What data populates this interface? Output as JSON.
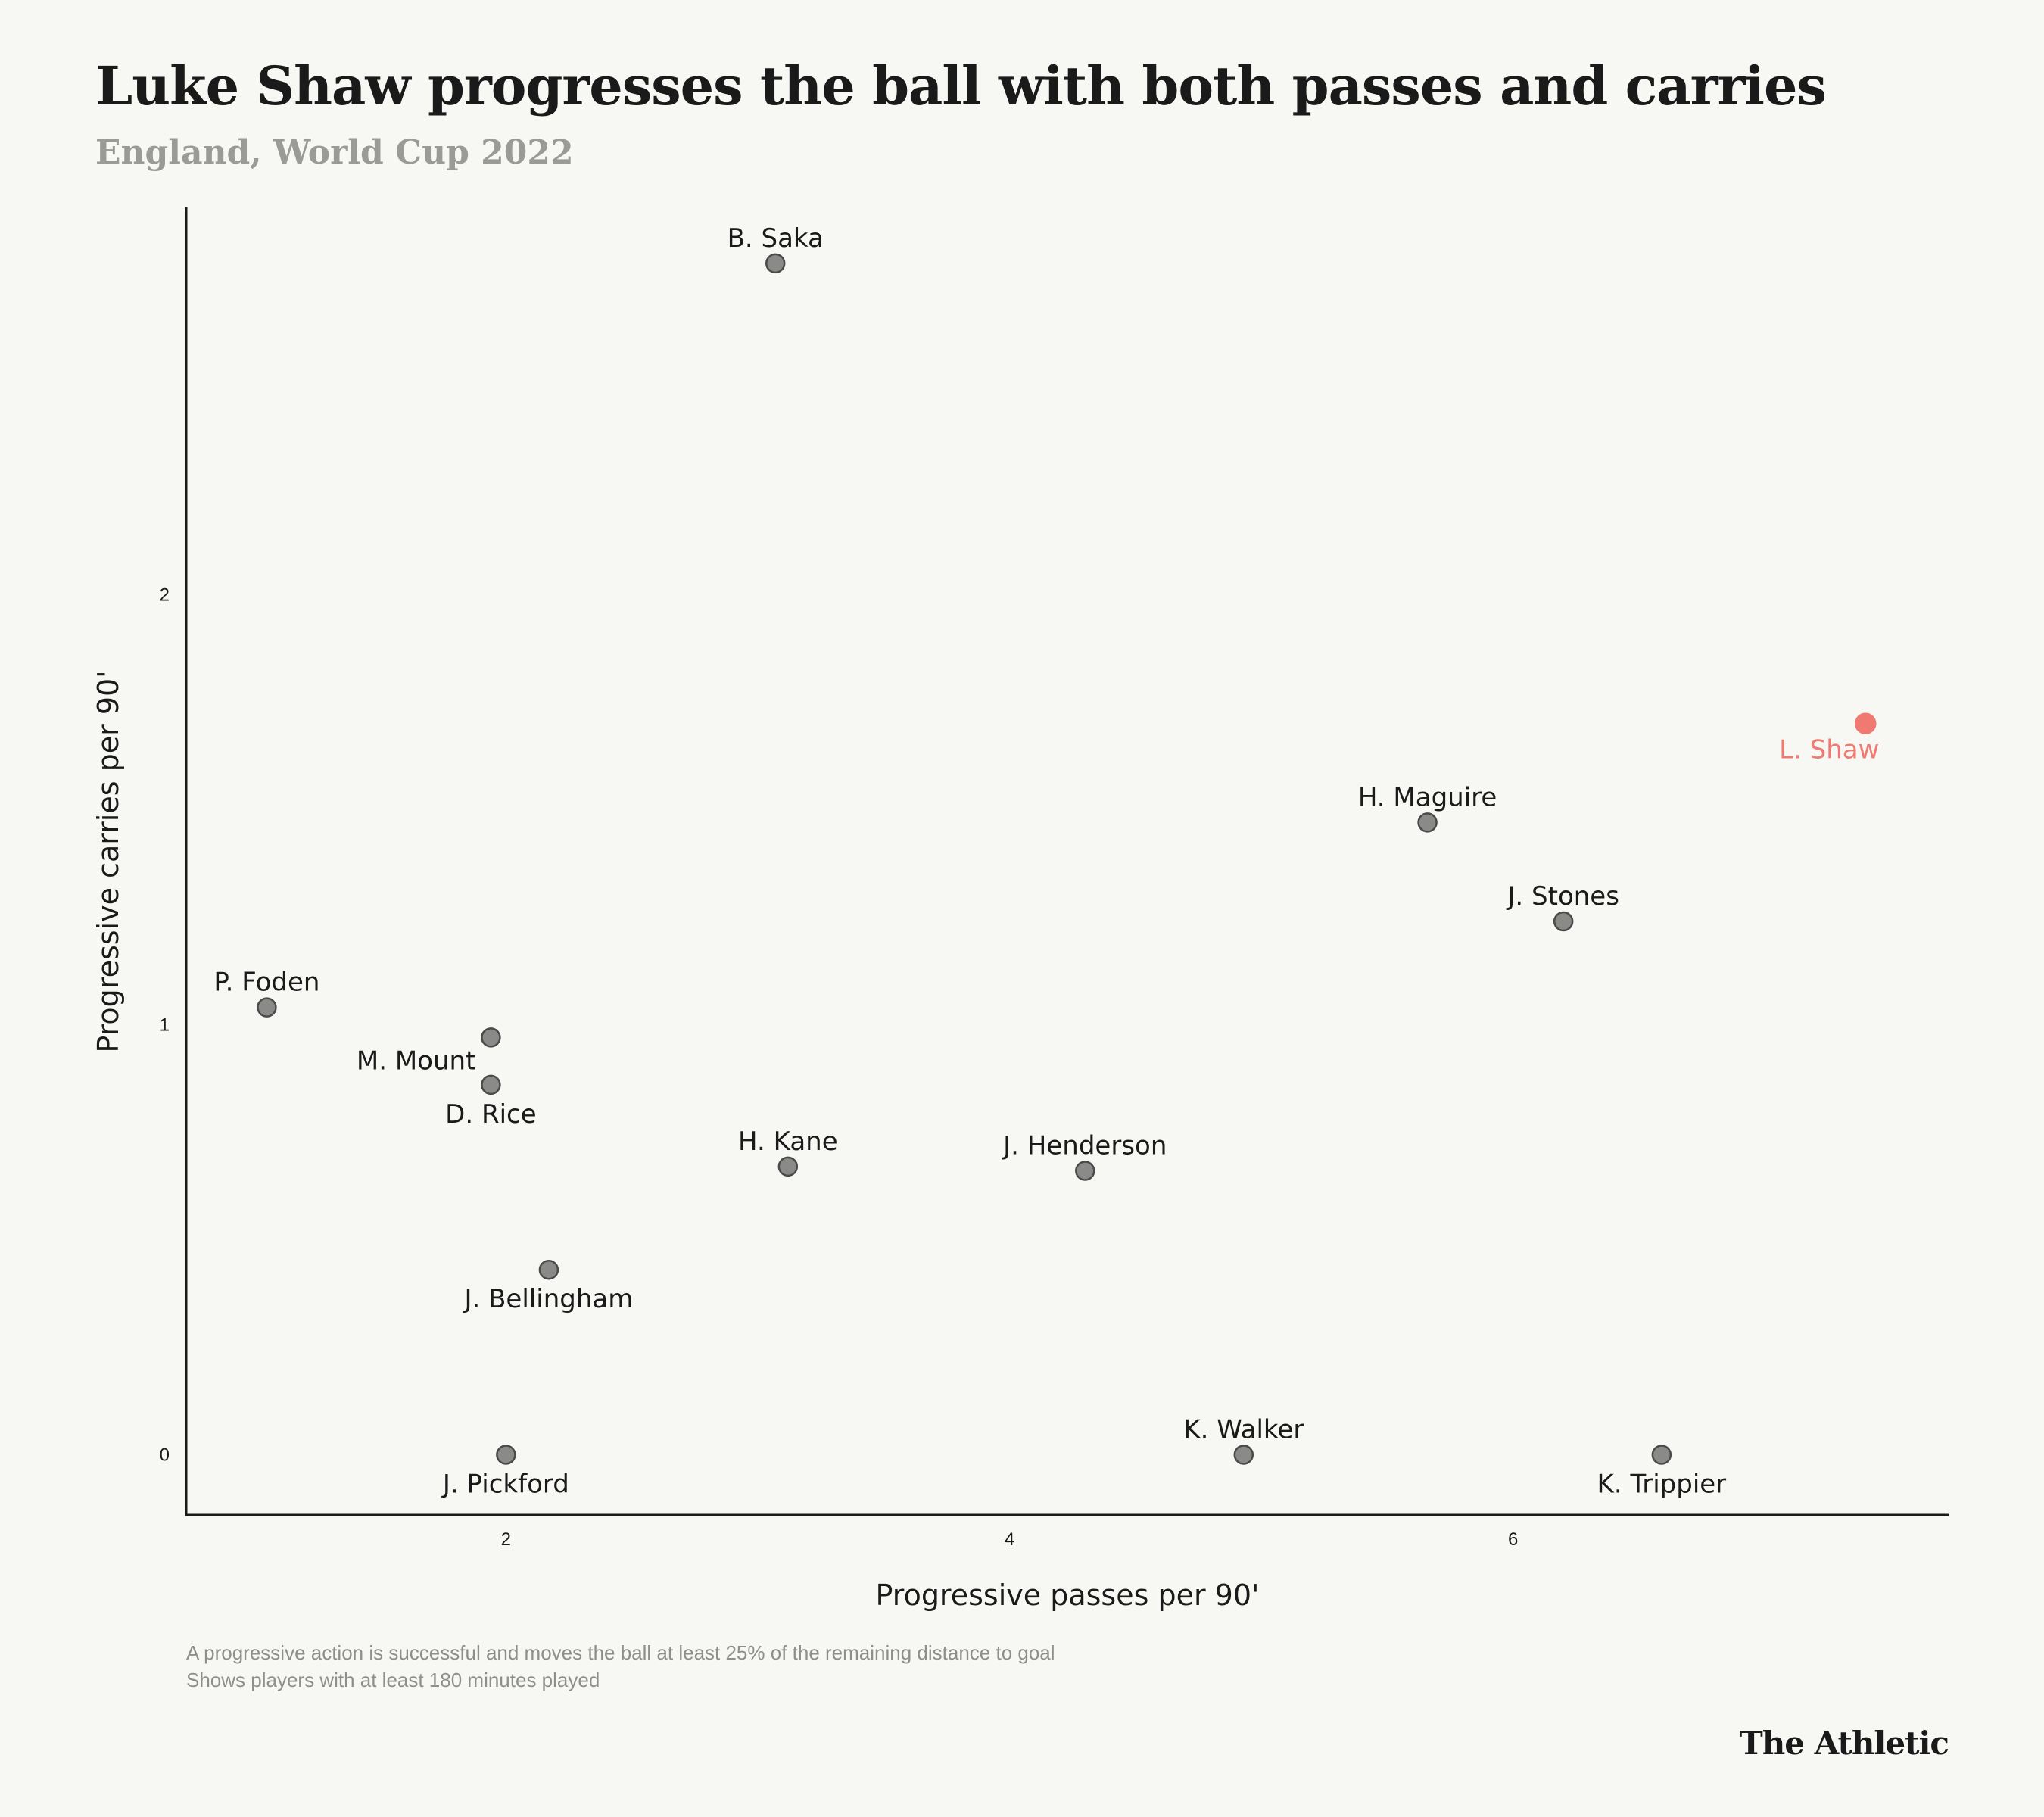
{
  "header": {
    "title": "Luke Shaw progresses the ball with both passes and carries",
    "subtitle": "England, World Cup 2022"
  },
  "footer": {
    "note1": "A progressive action is successful and moves the ball at least 25% of the remaining distance to goal",
    "note2": "Shows players with at least 180 minutes played",
    "brand": "The Athletic"
  },
  "colors": {
    "background": "#f7f7f4",
    "point": "#8a8a88",
    "point_stroke": "#4a4a4a",
    "highlight": "#f07a72",
    "axis": "#1a1a1a"
  },
  "chart_data": {
    "type": "scatter",
    "title": "Luke Shaw progresses the ball with both passes and carries",
    "subtitle": "England, World Cup 2022",
    "xlabel": "Progressive passes per 90'",
    "ylabel": "Progressive carries per 90'",
    "xlim": [
      0.73,
      7.73
    ],
    "ylim": [
      -0.14,
      2.9
    ],
    "xticks": [
      2,
      4,
      6
    ],
    "yticks": [
      0,
      1,
      2
    ],
    "grid": false,
    "points": [
      {
        "name": "B. Saka",
        "x": 3.07,
        "y": 2.77,
        "label_pos": "above"
      },
      {
        "name": "L. Shaw",
        "x": 7.4,
        "y": 1.7,
        "label_pos": "below",
        "highlight": true
      },
      {
        "name": "H. Maguire",
        "x": 5.66,
        "y": 1.47,
        "label_pos": "above"
      },
      {
        "name": "J. Stones",
        "x": 6.2,
        "y": 1.24,
        "label_pos": "above"
      },
      {
        "name": "P. Foden",
        "x": 1.05,
        "y": 1.04,
        "label_pos": "above"
      },
      {
        "name": "M. Mount",
        "x": 1.94,
        "y": 0.97,
        "label_pos": "below-left"
      },
      {
        "name": "D. Rice",
        "x": 1.94,
        "y": 0.86,
        "label_pos": "below"
      },
      {
        "name": "H. Kane",
        "x": 3.12,
        "y": 0.67,
        "label_pos": "above"
      },
      {
        "name": "J. Henderson",
        "x": 4.3,
        "y": 0.66,
        "label_pos": "above"
      },
      {
        "name": "J. Bellingham",
        "x": 2.17,
        "y": 0.43,
        "label_pos": "below"
      },
      {
        "name": "J. Pickford",
        "x": 2.0,
        "y": 0.0,
        "label_pos": "below"
      },
      {
        "name": "K. Walker",
        "x": 4.93,
        "y": 0.0,
        "label_pos": "above"
      },
      {
        "name": "K. Trippier",
        "x": 6.59,
        "y": 0.0,
        "label_pos": "below"
      }
    ]
  }
}
